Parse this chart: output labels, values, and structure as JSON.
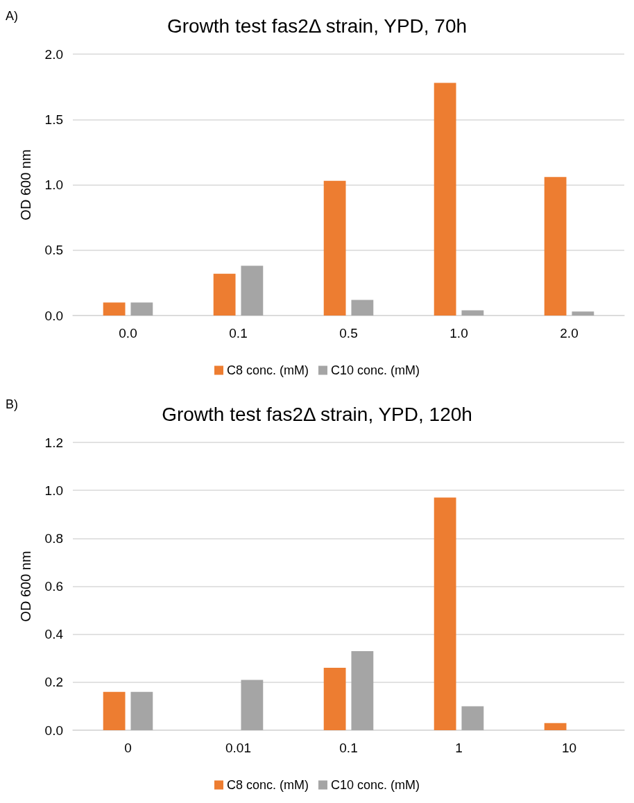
{
  "chart_data": [
    {
      "type": "bar",
      "title": "Growth test fas2Δ strain, YPD, 70h",
      "ylabel": "OD 600 nm",
      "annotations": [
        "A)"
      ],
      "categories": [
        "0.0",
        "0.1",
        "0.5",
        "1.0",
        "2.0"
      ],
      "series": [
        {
          "name": "C8 conc. (mM)",
          "color": "#ed7d31",
          "values": [
            0.1,
            0.32,
            1.03,
            1.78,
            1.06
          ]
        },
        {
          "name": "C10 conc. (mM)",
          "color": "#a5a5a5",
          "values": [
            0.1,
            0.38,
            0.12,
            0.04,
            0.03
          ]
        }
      ],
      "ylim": [
        0,
        2
      ],
      "yticks": [
        {
          "value": 0,
          "label": "0.0"
        },
        0.5,
        {
          "value": 1,
          "label": "1.0"
        },
        1.5,
        {
          "value": 2,
          "label": "2.0"
        }
      ],
      "grid": "y",
      "legend": "bottom"
    },
    {
      "type": "bar",
      "title": "Growth test fas2Δ strain, YPD, 120h",
      "ylabel": "OD 600 nm",
      "annotations": [
        "B)"
      ],
      "categories": [
        "0",
        "0.01",
        "0.1",
        "1",
        "10"
      ],
      "series": [
        {
          "name": "C8 conc. (mM)",
          "color": "#ed7d31",
          "values": [
            0.16,
            null,
            0.26,
            0.97,
            0.03
          ]
        },
        {
          "name": "C10 conc. (mM)",
          "color": "#a5a5a5",
          "values": [
            0.16,
            0.21,
            0.33,
            0.1,
            null
          ]
        }
      ],
      "ylim": [
        0,
        1.2
      ],
      "yticks": [
        {
          "value": 0,
          "label": "0.0"
        },
        0.2,
        0.4,
        0.6,
        0.8,
        {
          "value": 1,
          "label": "1.0"
        },
        1.2
      ],
      "grid": "y",
      "legend": "bottom"
    }
  ]
}
